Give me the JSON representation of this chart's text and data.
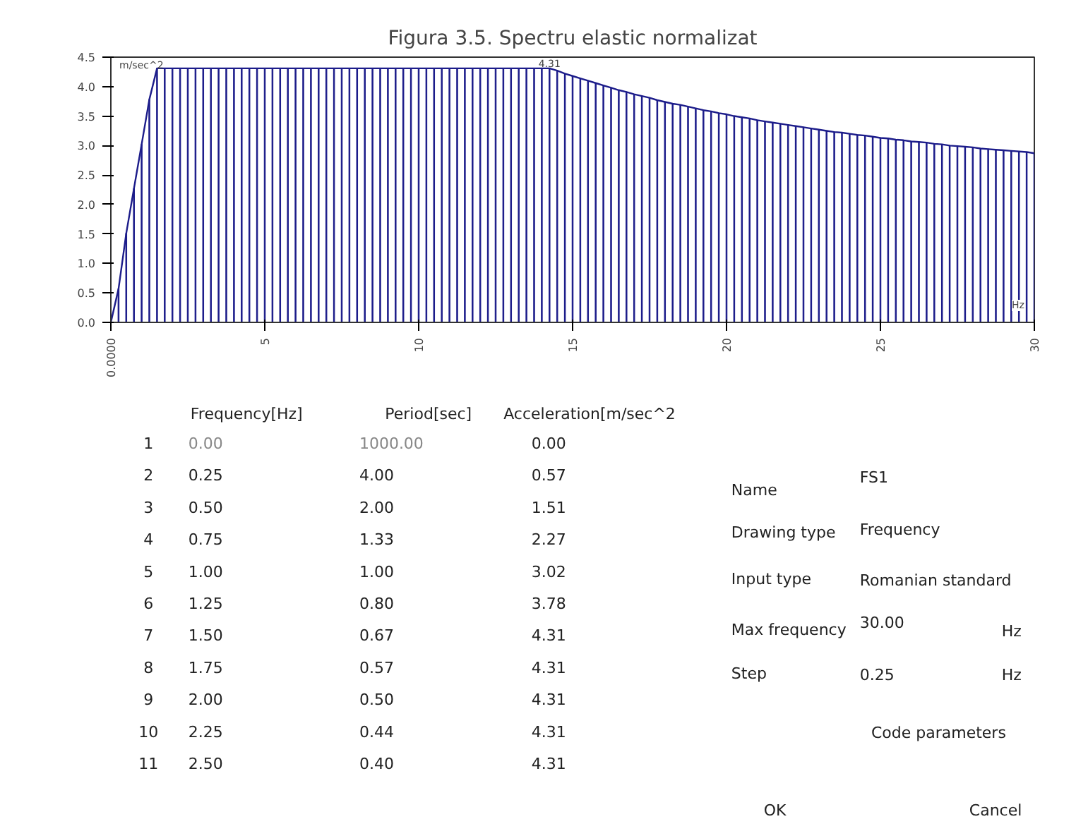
{
  "chart_data": {
    "type": "bar",
    "title": "Figura 3.5. Spectru elastic normalizat",
    "xlabel": "Hz",
    "ylabel": "m/sec^2",
    "x": [
      0,
      0.25,
      0.5,
      0.75,
      1,
      1.25,
      1.5,
      1.75,
      2,
      2.25,
      2.5,
      2.75,
      3,
      3.25,
      3.5,
      3.75,
      4,
      4.25,
      4.5,
      4.75,
      5,
      5.25,
      5.5,
      5.75,
      6,
      6.25,
      6.5,
      6.75,
      7,
      7.25,
      7.5,
      7.75,
      8,
      8.25,
      8.5,
      8.75,
      9,
      9.25,
      9.5,
      9.75,
      10,
      10.25,
      10.5,
      10.75,
      11,
      11.25,
      11.5,
      11.75,
      12,
      12.25,
      12.5,
      12.75,
      13,
      13.25,
      13.5,
      13.75,
      14,
      14.25,
      14.5,
      14.75,
      15,
      15.25,
      15.5,
      15.75,
      16,
      16.25,
      16.5,
      16.75,
      17,
      17.25,
      17.5,
      17.75,
      18,
      18.25,
      18.5,
      18.75,
      19,
      19.25,
      19.5,
      19.75,
      20,
      20.25,
      20.5,
      20.75,
      21,
      21.25,
      21.5,
      21.75,
      22,
      22.25,
      22.5,
      22.75,
      23,
      23.25,
      23.5,
      23.75,
      24,
      24.25,
      24.5,
      24.75,
      25,
      25.25,
      25.5,
      25.75,
      26,
      26.25,
      26.5,
      26.75,
      27,
      27.25,
      27.5,
      27.75,
      28,
      28.25,
      28.5,
      28.75,
      29,
      29.25,
      29.5,
      29.75,
      30
    ],
    "series": [
      {
        "color": "#1c1c8a",
        "values": [
          0,
          0.57,
          1.51,
          2.27,
          3.02,
          3.78,
          4.31,
          4.31,
          4.31,
          4.31,
          4.31,
          4.31,
          4.31,
          4.31,
          4.31,
          4.31,
          4.31,
          4.31,
          4.31,
          4.31,
          4.31,
          4.31,
          4.31,
          4.31,
          4.31,
          4.31,
          4.31,
          4.31,
          4.31,
          4.31,
          4.31,
          4.31,
          4.31,
          4.31,
          4.31,
          4.31,
          4.31,
          4.31,
          4.31,
          4.31,
          4.31,
          4.31,
          4.31,
          4.31,
          4.31,
          4.31,
          4.31,
          4.31,
          4.31,
          4.31,
          4.31,
          4.31,
          4.31,
          4.31,
          4.31,
          4.31,
          4.31,
          4.31,
          4.27,
          4.22,
          4.18,
          4.14,
          4.1,
          4.06,
          4.02,
          3.98,
          3.94,
          3.91,
          3.87,
          3.84,
          3.81,
          3.77,
          3.74,
          3.71,
          3.69,
          3.66,
          3.63,
          3.6,
          3.58,
          3.55,
          3.53,
          3.5,
          3.48,
          3.46,
          3.43,
          3.41,
          3.39,
          3.37,
          3.35,
          3.33,
          3.31,
          3.29,
          3.27,
          3.25,
          3.23,
          3.22,
          3.2,
          3.18,
          3.17,
          3.15,
          3.13,
          3.12,
          3.1,
          3.09,
          3.07,
          3.06,
          3.05,
          3.03,
          3.02,
          3.0,
          2.99,
          2.98,
          2.97,
          2.95,
          2.94,
          2.93,
          2.92,
          2.91,
          2.9,
          2.89,
          2.87
        ]
      }
    ],
    "xlim": [
      0,
      30
    ],
    "ylim": [
      0,
      4.5
    ],
    "xticks": [
      {
        "value": 0,
        "label": "0.0000"
      },
      5,
      10,
      15,
      20,
      25,
      30
    ],
    "yticks": [
      {
        "value": 0,
        "label": "0.0"
      },
      {
        "value": 0.5,
        "label": "0.5"
      },
      {
        "value": 1,
        "label": "1.0"
      },
      {
        "value": 1.5,
        "label": "1.5"
      },
      {
        "value": 2,
        "label": "2.0"
      },
      {
        "value": 2.5,
        "label": "2.5"
      },
      {
        "value": 3,
        "label": "3.0"
      },
      {
        "value": 3.5,
        "label": "3.5"
      },
      {
        "value": 4,
        "label": "4.0"
      },
      {
        "value": 4.5,
        "label": "4.5"
      }
    ],
    "annotations": [
      {
        "text": "4.31",
        "x": 14.25,
        "y": 4.31
      },
      "Frequency[Hz]",
      "Period[sec]",
      "Acceleration[m/sec^2",
      "1",
      "0.00",
      "1000.00",
      "0.00",
      "2",
      "0.25",
      "4.00",
      "0.57",
      "3",
      "0.50",
      "2.00",
      "1.51",
      "4",
      "0.75",
      "1.33",
      "2.27",
      "5",
      "1.00",
      "1.00",
      "3.02",
      "6",
      "1.25",
      "0.80",
      "3.78",
      "7",
      "1.50",
      "0.67",
      "4.31",
      "8",
      "1.75",
      "0.57",
      "4.31",
      "9",
      "2.00",
      "0.50",
      "4.31",
      "10",
      "2.25",
      "0.44",
      "4.31",
      "11",
      "2.50",
      "0.40",
      "4.31",
      "Name",
      "FS1",
      "Drawing type",
      "Frequency",
      "Input type",
      "Romanian standard",
      "Max frequency",
      "30.00",
      "Hz",
      "Step",
      "0.25",
      "Hz",
      "Code parameters",
      "OK",
      "Cancel"
    ]
  }
}
